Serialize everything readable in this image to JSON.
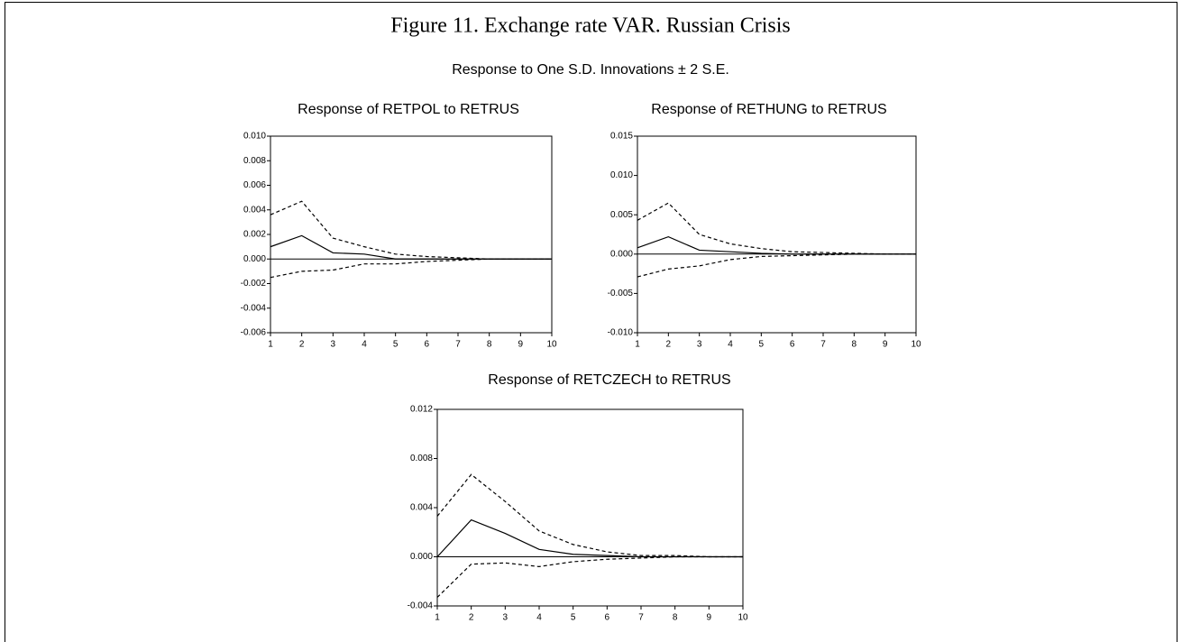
{
  "figure": {
    "title": "Figure 11. Exchange rate VAR. Russian Crisis",
    "subtitle": "Response to One S.D. Innovations ± 2 S.E."
  },
  "chart_data": [
    {
      "type": "line",
      "title": "Response of RETPOL to RETRUS",
      "x": [
        1,
        2,
        3,
        4,
        5,
        6,
        7,
        8,
        9,
        10
      ],
      "xlim": [
        1,
        10
      ],
      "xticks": [
        1,
        2,
        3,
        4,
        5,
        6,
        7,
        8,
        9,
        10
      ],
      "ylim": [
        -0.006,
        0.01
      ],
      "yticks": [
        {
          "value": -0.006,
          "label": "-0.006"
        },
        {
          "value": -0.004,
          "label": "-0.004"
        },
        {
          "value": -0.002,
          "label": "-0.002"
        },
        {
          "value": 0,
          "label": "0.000"
        },
        {
          "value": 0.002,
          "label": "0.002"
        },
        {
          "value": 0.004,
          "label": "0.004"
        },
        {
          "value": 0.006,
          "label": "0.006"
        },
        {
          "value": 0.008,
          "label": "0.008"
        },
        {
          "value": 0.01,
          "label": "0.010"
        }
      ],
      "series": [
        {
          "color": "#000000",
          "dashed": false,
          "values": [
            0.001,
            0.0019,
            0.0005,
            0.0004,
            0.0,
            0.0,
            0.0,
            0.0,
            0.0,
            0.0
          ]
        },
        {
          "color": "#000000",
          "dashed": true,
          "values": [
            0.0036,
            0.0047,
            0.0017,
            0.001,
            0.0004,
            0.0002,
            0.0001,
            0.0,
            0.0,
            0.0
          ]
        },
        {
          "color": "#000000",
          "dashed": true,
          "values": [
            -0.0015,
            -0.001,
            -0.0009,
            -0.0004,
            -0.0004,
            -0.0002,
            -0.0001,
            0.0,
            0.0,
            0.0
          ]
        }
      ]
    },
    {
      "type": "line",
      "title": "Response of RETHUNG to RETRUS",
      "x": [
        1,
        2,
        3,
        4,
        5,
        6,
        7,
        8,
        9,
        10
      ],
      "xlim": [
        1,
        10
      ],
      "xticks": [
        1,
        2,
        3,
        4,
        5,
        6,
        7,
        8,
        9,
        10
      ],
      "ylim": [
        -0.01,
        0.015
      ],
      "yticks": [
        {
          "value": -0.01,
          "label": "-0.010"
        },
        {
          "value": -0.005,
          "label": "-0.005"
        },
        {
          "value": 0,
          "label": "0.000"
        },
        {
          "value": 0.005,
          "label": "0.005"
        },
        {
          "value": 0.01,
          "label": "0.010"
        },
        {
          "value": 0.015,
          "label": "0.015"
        }
      ],
      "series": [
        {
          "color": "#000000",
          "dashed": false,
          "values": [
            0.0008,
            0.0022,
            0.0005,
            0.0003,
            0.0001,
            0.0,
            0.0,
            0.0,
            0.0,
            0.0
          ]
        },
        {
          "color": "#000000",
          "dashed": true,
          "values": [
            0.0043,
            0.0065,
            0.0025,
            0.0013,
            0.0007,
            0.0003,
            0.0002,
            0.0001,
            0.0,
            0.0
          ]
        },
        {
          "color": "#000000",
          "dashed": true,
          "values": [
            -0.0029,
            -0.0019,
            -0.0015,
            -0.0007,
            -0.0003,
            -0.0002,
            -0.0001,
            0.0,
            0.0,
            0.0
          ]
        }
      ]
    },
    {
      "type": "line",
      "title": "Response of RETCZECH to RETRUS",
      "x": [
        1,
        2,
        3,
        4,
        5,
        6,
        7,
        8,
        9,
        10
      ],
      "xlim": [
        1,
        10
      ],
      "xticks": [
        1,
        2,
        3,
        4,
        5,
        6,
        7,
        8,
        9,
        10
      ],
      "ylim": [
        -0.004,
        0.012
      ],
      "yticks": [
        {
          "value": -0.004,
          "label": "-0.004"
        },
        {
          "value": 0,
          "label": "0.000"
        },
        {
          "value": 0.004,
          "label": "0.004"
        },
        {
          "value": 0.008,
          "label": "0.008"
        },
        {
          "value": 0.012,
          "label": "0.012"
        }
      ],
      "series": [
        {
          "color": "#000000",
          "dashed": false,
          "values": [
            0.0,
            0.003,
            0.0019,
            0.0006,
            0.0002,
            0.0001,
            0.0,
            0.0,
            0.0,
            0.0
          ]
        },
        {
          "color": "#000000",
          "dashed": true,
          "values": [
            0.0033,
            0.0067,
            0.0045,
            0.0021,
            0.001,
            0.0004,
            0.0001,
            0.0001,
            0.0,
            0.0
          ]
        },
        {
          "color": "#000000",
          "dashed": true,
          "values": [
            -0.0033,
            -0.0006,
            -0.0005,
            -0.0008,
            -0.0004,
            -0.0002,
            -0.0001,
            0.0,
            0.0,
            0.0
          ]
        }
      ]
    }
  ]
}
